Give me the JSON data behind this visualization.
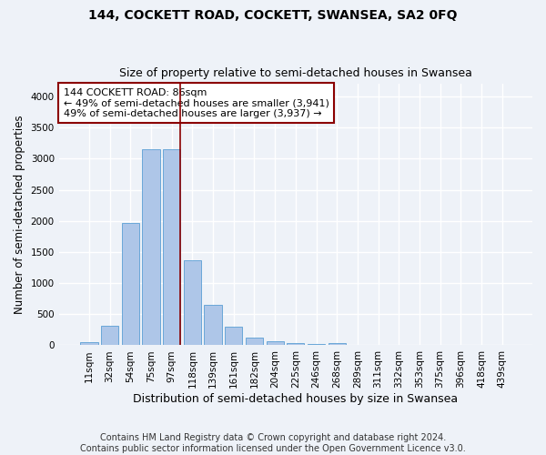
{
  "title": "144, COCKETT ROAD, COCKETT, SWANSEA, SA2 0FQ",
  "subtitle": "Size of property relative to semi-detached houses in Swansea",
  "xlabel": "Distribution of semi-detached houses by size in Swansea",
  "ylabel": "Number of semi-detached properties",
  "categories": [
    "11sqm",
    "32sqm",
    "54sqm",
    "75sqm",
    "97sqm",
    "118sqm",
    "139sqm",
    "161sqm",
    "182sqm",
    "204sqm",
    "225sqm",
    "246sqm",
    "268sqm",
    "289sqm",
    "311sqm",
    "332sqm",
    "353sqm",
    "375sqm",
    "396sqm",
    "418sqm",
    "439sqm"
  ],
  "values": [
    45,
    320,
    1970,
    3150,
    3150,
    1360,
    645,
    305,
    125,
    60,
    38,
    22,
    30,
    12,
    8,
    4,
    4,
    4,
    4,
    4,
    4
  ],
  "bar_color": "#aec6e8",
  "bar_edge_color": "#5a9fd4",
  "vline_color": "#8b0000",
  "vline_pos": 4.425,
  "annotation_text": "144 COCKETT ROAD: 86sqm\n← 49% of semi-detached houses are smaller (3,941)\n49% of semi-detached houses are larger (3,937) →",
  "annotation_box_color": "white",
  "annotation_box_edge_color": "#8b0000",
  "ylim": [
    0,
    4200
  ],
  "yticks": [
    0,
    500,
    1000,
    1500,
    2000,
    2500,
    3000,
    3500,
    4000
  ],
  "background_color": "#eef2f8",
  "grid_color": "white",
  "footer_text": "Contains HM Land Registry data © Crown copyright and database right 2024.\nContains public sector information licensed under the Open Government Licence v3.0.",
  "title_fontsize": 10,
  "subtitle_fontsize": 9,
  "annotation_fontsize": 8,
  "footer_fontsize": 7,
  "ylabel_fontsize": 8.5,
  "xlabel_fontsize": 9,
  "tick_fontsize": 7.5
}
